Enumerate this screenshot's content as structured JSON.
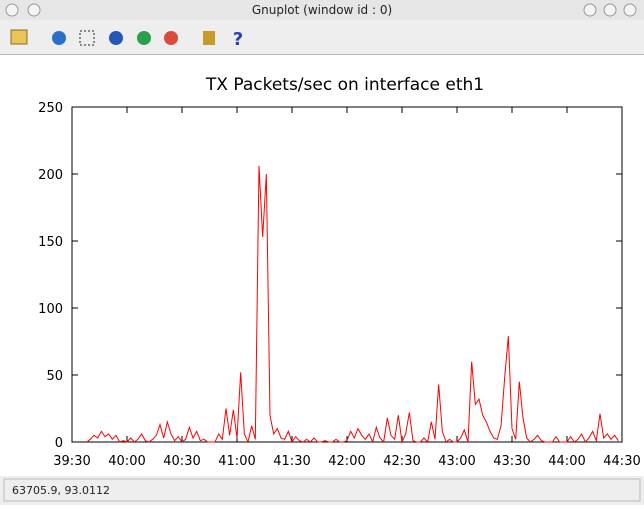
{
  "window": {
    "title": "Gnuplot (window id : 0)",
    "status": "63705.9,  93.0112"
  },
  "chart_data": {
    "type": "line",
    "title": "TX Packets/sec on interface eth1",
    "color": "#ff0000",
    "x": [
      2378,
      2380,
      2382,
      2384,
      2386,
      2388,
      2390,
      2392,
      2394,
      2396,
      2398,
      2400,
      2402,
      2404,
      2406,
      2408,
      2410,
      2412,
      2414,
      2416,
      2418,
      2420,
      2422,
      2424,
      2426,
      2428,
      2430,
      2432,
      2434,
      2436,
      2438,
      2440,
      2442,
      2444,
      2446,
      2448,
      2450,
      2452,
      2454,
      2456,
      2458,
      2460,
      2462,
      2464,
      2466,
      2468,
      2470,
      2472,
      2474,
      2476,
      2478,
      2480,
      2482,
      2484,
      2486,
      2488,
      2490,
      2492,
      2494,
      2496,
      2498,
      2500,
      2502,
      2504,
      2506,
      2508,
      2510,
      2512,
      2514,
      2516,
      2518,
      2520,
      2522,
      2524,
      2526,
      2528,
      2530,
      2532,
      2534,
      2536,
      2538,
      2540,
      2542,
      2544,
      2546,
      2548,
      2550,
      2552,
      2554,
      2556,
      2558,
      2560,
      2562,
      2564,
      2566,
      2568,
      2570,
      2572,
      2574,
      2576,
      2578,
      2580,
      2582,
      2584,
      2586,
      2588,
      2590,
      2592,
      2594,
      2596,
      2598,
      2600,
      2602,
      2604,
      2606,
      2608,
      2610,
      2612,
      2614,
      2616,
      2618,
      2620,
      2622,
      2624,
      2626,
      2628,
      2630,
      2632,
      2634,
      2636,
      2638,
      2640,
      2642,
      2644,
      2646,
      2648,
      2650,
      2652,
      2654,
      2656,
      2658,
      2660,
      2662,
      2664,
      2666,
      2668
    ],
    "values": [
      0,
      2,
      5,
      3,
      8,
      4,
      6,
      2,
      5,
      0,
      1,
      0,
      3,
      0,
      2,
      6,
      1,
      0,
      2,
      5,
      13,
      3,
      15,
      6,
      1,
      4,
      0,
      2,
      11,
      3,
      8,
      1,
      2,
      0,
      0,
      0,
      6,
      2,
      25,
      5,
      24,
      3,
      52,
      6,
      0,
      12,
      2,
      206,
      153,
      200,
      20,
      6,
      10,
      3,
      2,
      8,
      0,
      4,
      1,
      0,
      2,
      0,
      3,
      0,
      0,
      1,
      0,
      0,
      2,
      0,
      0,
      1,
      8,
      3,
      10,
      5,
      2,
      6,
      0,
      11,
      3,
      0,
      18,
      5,
      2,
      20,
      0,
      6,
      22,
      1,
      0,
      0,
      3,
      0,
      15,
      2,
      43,
      8,
      0,
      2,
      0,
      0,
      3,
      9,
      0,
      60,
      28,
      32,
      20,
      15,
      8,
      3,
      2,
      12,
      48,
      79,
      10,
      2,
      45,
      18,
      3,
      0,
      2,
      5,
      1,
      0,
      0,
      0,
      4,
      0,
      0,
      0,
      4,
      0,
      2,
      6,
      0,
      3,
      8,
      1,
      21,
      3,
      6,
      2,
      5,
      1
    ],
    "xlim": [
      2370,
      2670
    ],
    "xticks": [
      {
        "value": 2370,
        "label": "39:30"
      },
      {
        "value": 2400,
        "label": "40:00"
      },
      {
        "value": 2430,
        "label": "40:30"
      },
      {
        "value": 2460,
        "label": "41:00"
      },
      {
        "value": 2490,
        "label": "41:30"
      },
      {
        "value": 2520,
        "label": "42:00"
      },
      {
        "value": 2550,
        "label": "42:30"
      },
      {
        "value": 2580,
        "label": "43:00"
      },
      {
        "value": 2610,
        "label": "43:30"
      },
      {
        "value": 2640,
        "label": "44:00"
      },
      {
        "value": 2670,
        "label": "44:30"
      }
    ],
    "ylim": [
      0,
      250
    ],
    "yticks": [
      0,
      50,
      100,
      150,
      200,
      250
    ],
    "grid": false
  }
}
